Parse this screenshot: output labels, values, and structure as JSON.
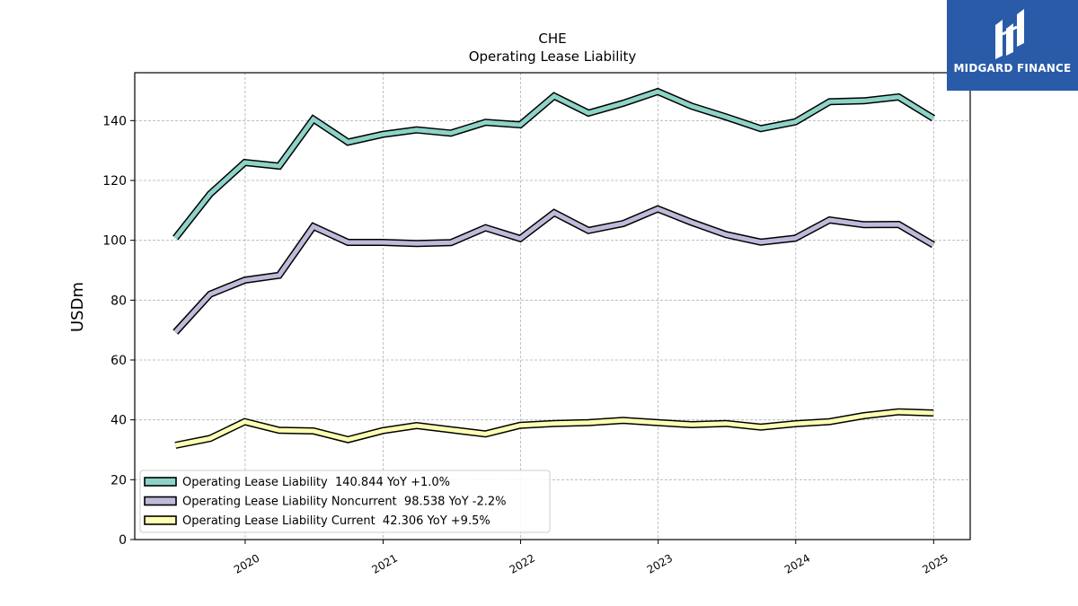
{
  "logo": {
    "text": "MIDGARD FINANCE",
    "icon": "midgard-logo-mark",
    "bg_color": "#2a5ba8"
  },
  "chart_data": {
    "type": "line",
    "title": "CHE",
    "subtitle": "Operating Lease Liability",
    "ylabel": "USDm",
    "xlabel": "",
    "ylim": [
      0,
      156
    ],
    "xlim": [
      "2019-03-14",
      "2025-04-08"
    ],
    "yticks": [
      0,
      20,
      40,
      60,
      80,
      100,
      120,
      140
    ],
    "xticks": [
      "2020",
      "2021",
      "2022",
      "2023",
      "2024",
      "2025"
    ],
    "grid": true,
    "legend_position": "lower-left",
    "x": [
      "2019-06-30",
      "2019-09-30",
      "2019-12-31",
      "2020-03-31",
      "2020-06-30",
      "2020-09-30",
      "2020-12-31",
      "2021-03-31",
      "2021-06-30",
      "2021-09-30",
      "2021-12-31",
      "2022-03-31",
      "2022-06-30",
      "2022-09-30",
      "2022-12-31",
      "2023-03-31",
      "2023-06-30",
      "2023-09-30",
      "2023-12-31",
      "2024-03-31",
      "2024-06-30",
      "2024-09-30",
      "2024-12-31"
    ],
    "series": [
      {
        "name": "Operating Lease Liability",
        "legend": "Operating Lease Liability  140.844 YoY +1.0%",
        "color": "#8dd3c7",
        "values": [
          100.8,
          115.5,
          126,
          124.8,
          140.5,
          132.8,
          135.4,
          136.9,
          135.8,
          139.4,
          138.6,
          148.2,
          142.5,
          145.8,
          149.7,
          144.8,
          141.2,
          137.3,
          139.6,
          146.3,
          146.6,
          147.9,
          140.8
        ]
      },
      {
        "name": "Operating Lease Liability Noncurrent",
        "legend": "Operating Lease Liability Noncurrent  98.538 YoY -2.2%",
        "color": "#bebada",
        "values": [
          69.3,
          82,
          86.7,
          88.3,
          104.6,
          99.3,
          99.3,
          98.9,
          99.2,
          104.2,
          100.6,
          109.2,
          103.3,
          105.6,
          110.5,
          106,
          101.9,
          99.4,
          100.7,
          106.8,
          105.2,
          105.3,
          98.5
        ]
      },
      {
        "name": "Operating Lease Liability Current",
        "legend": "Operating Lease Liability Current  42.306 YoY +9.5%",
        "color": "#ffffb3",
        "values": [
          31.5,
          33.8,
          39.4,
          36.5,
          36.3,
          33.4,
          36.4,
          38.1,
          36.7,
          35.3,
          38.2,
          38.8,
          39.1,
          39.8,
          39.1,
          38.4,
          38.8,
          37.6,
          38.7,
          39.4,
          41.4,
          42.7,
          42.3
        ]
      }
    ]
  }
}
